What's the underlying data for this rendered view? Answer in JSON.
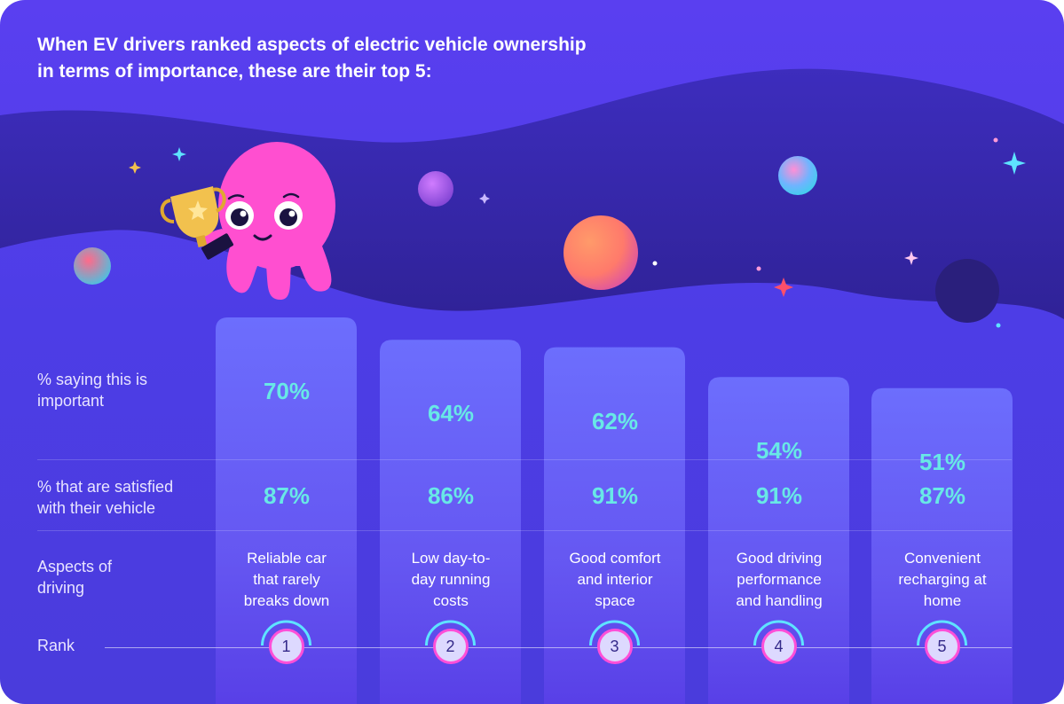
{
  "title": {
    "line1": "When EV drivers ranked aspects of electric vehicle ownership",
    "line2": "in terms of importance, these are their top 5:"
  },
  "row_labels": {
    "important": [
      "% saying this is",
      "important"
    ],
    "satisfied": [
      "% that are satisfied",
      "with their vehicle"
    ],
    "aspects": [
      "Aspects of",
      "driving"
    ],
    "rank": "Rank"
  },
  "colors": {
    "background": "#4d3de6",
    "column": "#6b6bff",
    "value_text": "#68e8e6",
    "rank_ring": "#ff4fd8",
    "rank_arc": "#5ee3ff",
    "mascot": "#ff4fd0"
  },
  "icons": [
    "octopus-mascot",
    "trophy-icon",
    "sparkle-icon",
    "planet-icon"
  ],
  "chart_data": {
    "type": "table",
    "categories": [
      "Reliable car that rarely breaks down",
      "Low day-to-day running costs",
      "Good comfort and interior space",
      "Good driving performance and handling",
      "Convenient recharging at home"
    ],
    "category_lines": [
      [
        "Reliable car",
        "that rarely",
        "breaks down"
      ],
      [
        "Low day-to-",
        "day running",
        "costs"
      ],
      [
        "Good comfort",
        "and interior",
        "space"
      ],
      [
        "Good driving",
        "performance",
        "and handling"
      ],
      [
        "Convenient",
        "recharging at",
        "home"
      ]
    ],
    "series": [
      {
        "name": "% saying this is important",
        "values": [
          70,
          64,
          62,
          54,
          51
        ],
        "labels": [
          "70%",
          "64%",
          "62%",
          "54%",
          "51%"
        ]
      },
      {
        "name": "% that are satisfied with their vehicle",
        "values": [
          87,
          86,
          91,
          91,
          87
        ],
        "labels": [
          "87%",
          "86%",
          "91%",
          "91%",
          "87%"
        ]
      }
    ],
    "ranks": [
      "1",
      "2",
      "3",
      "4",
      "5"
    ]
  }
}
